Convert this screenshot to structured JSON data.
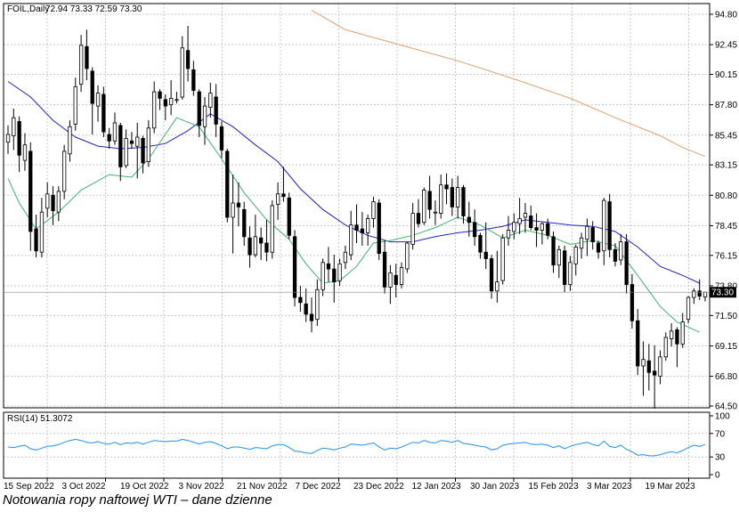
{
  "chart_data": {
    "type": "candlestick",
    "symbol_header": "FOIL,Daily",
    "ohlc_header": "72.94 73.33 72.59 73.30",
    "last_price_label": "73.30",
    "price_axis": {
      "ticks": [
        "94.80",
        "92.45",
        "90.15",
        "87.80",
        "85.45",
        "83.15",
        "80.80",
        "78.45",
        "76.15",
        "73.80",
        "71.50",
        "69.15",
        "66.80",
        "64.50"
      ],
      "range": [
        64.5,
        94.8
      ]
    },
    "rsi_panel": {
      "label": "RSI(14) 51.3072",
      "ticks": [
        "100",
        "70",
        "30",
        "0"
      ],
      "range": [
        0,
        100
      ],
      "levels": [
        70,
        30
      ]
    },
    "x_labels": [
      "15 Sep 2022",
      "3 Oct 2022",
      "19 Oct 2022",
      "3 Nov 2022",
      "21 Nov 2022",
      "7 Dec 2022",
      "23 Dec 2022",
      "12 Jan 2023",
      "30 Jan 2023",
      "15 Feb 2023",
      "3 Mar 2023",
      "19 Mar 2023"
    ],
    "colors": {
      "bull_candle": "#ffffff",
      "bear_candle": "#000000",
      "ma_fast": "#3cb371",
      "ma_mid": "#2020d0",
      "ma_slow": "#e0a070",
      "rsi": "#1e90ff",
      "grid": "#c8c8c8"
    },
    "candles": [
      [
        84.9,
        86.2,
        84.0,
        85.5
      ],
      [
        85.4,
        87.5,
        84.3,
        86.8
      ],
      [
        86.5,
        86.9,
        82.6,
        83.9
      ],
      [
        83.5,
        85.6,
        82.7,
        84.7
      ],
      [
        84.2,
        84.9,
        76.5,
        78.0
      ],
      [
        78.2,
        79.3,
        76.0,
        76.5
      ],
      [
        76.4,
        80.6,
        76.0,
        79.5
      ],
      [
        79.8,
        81.8,
        79.1,
        80.9
      ],
      [
        80.8,
        81.5,
        78.5,
        79.6
      ],
      [
        79.5,
        81.5,
        78.8,
        81.1
      ],
      [
        81.1,
        84.7,
        80.5,
        84.2
      ],
      [
        84.0,
        86.6,
        83.4,
        86.1
      ],
      [
        86.3,
        89.9,
        85.8,
        89.2
      ],
      [
        89.4,
        93.2,
        88.8,
        92.4
      ],
      [
        92.3,
        93.6,
        89.7,
        90.6
      ],
      [
        90.4,
        90.7,
        85.5,
        87.9
      ],
      [
        87.7,
        89.3,
        86.5,
        88.7
      ],
      [
        88.6,
        89.2,
        85.3,
        85.7
      ],
      [
        85.5,
        86.0,
        84.4,
        85.0
      ],
      [
        85.0,
        87.2,
        84.7,
        86.4
      ],
      [
        86.2,
        86.4,
        81.9,
        83.0
      ],
      [
        83.1,
        85.9,
        82.9,
        85.2
      ],
      [
        85.0,
        85.7,
        84.4,
        84.8
      ],
      [
        84.6,
        86.4,
        82.1,
        85.3
      ],
      [
        85.2,
        85.4,
        82.5,
        83.3
      ],
      [
        83.4,
        86.6,
        83.0,
        86.0
      ],
      [
        86.0,
        89.6,
        85.6,
        88.8
      ],
      [
        88.8,
        89.0,
        87.4,
        88.3
      ],
      [
        88.2,
        88.6,
        86.6,
        87.7
      ],
      [
        87.8,
        89.7,
        87.0,
        88.3
      ],
      [
        88.2,
        88.8,
        87.9,
        88.2
      ],
      [
        88.4,
        93.1,
        88.2,
        92.2
      ],
      [
        92.0,
        93.9,
        89.6,
        90.6
      ],
      [
        90.5,
        91.2,
        88.5,
        88.9
      ],
      [
        88.8,
        89.0,
        85.3,
        86.2
      ],
      [
        86.1,
        88.4,
        84.7,
        87.7
      ],
      [
        87.6,
        89.5,
        86.8,
        88.7
      ],
      [
        88.4,
        89.4,
        85.3,
        86.3
      ],
      [
        86.1,
        86.5,
        83.7,
        84.3
      ],
      [
        84.2,
        84.4,
        78.7,
        79.1
      ],
      [
        79.1,
        82.4,
        76.3,
        80.2
      ],
      [
        80.2,
        81.8,
        78.4,
        79.9
      ],
      [
        79.7,
        80.3,
        76.9,
        77.6
      ],
      [
        77.5,
        78.4,
        75.2,
        76.2
      ],
      [
        76.2,
        79.3,
        76.0,
        77.6
      ],
      [
        77.5,
        78.3,
        75.8,
        77.1
      ],
      [
        77.1,
        78.9,
        75.7,
        76.4
      ],
      [
        76.4,
        80.4,
        75.9,
        80.0
      ],
      [
        80.1,
        81.8,
        78.9,
        80.9
      ],
      [
        80.9,
        83.0,
        80.3,
        80.7
      ],
      [
        80.6,
        81.0,
        77.4,
        77.7
      ],
      [
        77.6,
        78.1,
        72.2,
        72.9
      ],
      [
        72.9,
        73.8,
        71.8,
        72.5
      ],
      [
        72.4,
        73.6,
        71.0,
        71.6
      ],
      [
        71.6,
        72.9,
        70.2,
        71.1
      ],
      [
        71.2,
        74.3,
        70.7,
        73.5
      ],
      [
        73.5,
        75.9,
        73.0,
        75.6
      ],
      [
        75.5,
        76.8,
        74.1,
        75.1
      ],
      [
        75.1,
        76.2,
        72.5,
        74.1
      ],
      [
        74.2,
        75.9,
        73.8,
        75.5
      ],
      [
        75.6,
        76.9,
        75.1,
        76.4
      ],
      [
        76.2,
        79.6,
        75.8,
        78.5
      ],
      [
        78.5,
        80.1,
        77.1,
        78.1
      ],
      [
        78.2,
        79.5,
        76.9,
        77.9
      ],
      [
        77.9,
        79.3,
        76.9,
        79.0
      ],
      [
        79.0,
        80.7,
        78.3,
        80.3
      ],
      [
        80.2,
        80.5,
        75.8,
        76.3
      ],
      [
        76.4,
        77.3,
        73.2,
        73.7
      ],
      [
        73.7,
        75.4,
        72.4,
        74.8
      ],
      [
        74.6,
        75.5,
        72.9,
        73.9
      ],
      [
        73.9,
        75.6,
        73.6,
        75.2
      ],
      [
        75.1,
        77.2,
        74.8,
        77.1
      ],
      [
        77.0,
        80.2,
        76.6,
        79.4
      ],
      [
        79.4,
        80.5,
        78.3,
        78.6
      ],
      [
        78.7,
        81.4,
        78.5,
        81.2
      ],
      [
        81.1,
        82.3,
        79.0,
        79.7
      ],
      [
        79.5,
        80.4,
        78.5,
        79.5
      ],
      [
        79.4,
        82.4,
        79.0,
        81.6
      ],
      [
        81.6,
        82.5,
        80.1,
        81.3
      ],
      [
        81.4,
        82.1,
        79.2,
        79.9
      ],
      [
        79.9,
        82.3,
        79.0,
        81.4
      ],
      [
        81.4,
        81.6,
        78.6,
        79.2
      ],
      [
        79.1,
        80.3,
        77.6,
        78.7
      ],
      [
        78.7,
        79.7,
        76.9,
        77.6
      ],
      [
        77.7,
        77.9,
        75.9,
        76.4
      ],
      [
        76.4,
        78.7,
        75.1,
        75.9
      ],
      [
        75.9,
        76.2,
        72.8,
        73.4
      ],
      [
        73.4,
        76.5,
        72.5,
        74.1
      ],
      [
        74.2,
        77.8,
        73.9,
        77.5
      ],
      [
        77.5,
        79.2,
        76.9,
        78.1
      ],
      [
        78.0,
        79.4,
        77.4,
        78.7
      ],
      [
        78.6,
        80.6,
        77.8,
        79.0
      ],
      [
        79.1,
        80.2,
        77.9,
        79.4
      ],
      [
        79.2,
        80.0,
        78.1,
        78.3
      ],
      [
        78.3,
        79.4,
        76.8,
        78.1
      ],
      [
        78.1,
        78.7,
        77.0,
        78.6
      ],
      [
        78.6,
        79.0,
        77.4,
        77.7
      ],
      [
        77.6,
        78.0,
        74.8,
        75.4
      ],
      [
        75.4,
        76.9,
        74.4,
        76.6
      ],
      [
        76.5,
        76.9,
        73.3,
        73.9
      ],
      [
        73.9,
        76.1,
        73.4,
        75.6
      ],
      [
        75.5,
        77.0,
        74.6,
        76.8
      ],
      [
        76.7,
        77.9,
        75.9,
        77.5
      ],
      [
        77.4,
        79.0,
        76.1,
        78.4
      ],
      [
        78.3,
        78.8,
        76.6,
        77.2
      ],
      [
        77.1,
        77.3,
        75.9,
        76.4
      ],
      [
        76.5,
        80.6,
        75.4,
        80.4
      ],
      [
        80.3,
        80.9,
        76.0,
        76.6
      ],
      [
        76.6,
        77.1,
        75.3,
        75.7
      ],
      [
        75.8,
        77.8,
        75.4,
        77.2
      ],
      [
        77.2,
        77.8,
        73.2,
        73.9
      ],
      [
        73.9,
        74.7,
        70.5,
        71.1
      ],
      [
        71.1,
        72.0,
        66.9,
        67.6
      ],
      [
        67.6,
        69.5,
        65.3,
        68.1
      ],
      [
        68.0,
        69.3,
        65.7,
        67.1
      ],
      [
        67.2,
        69.2,
        64.3,
        66.9
      ],
      [
        66.8,
        68.8,
        66.2,
        68.3
      ],
      [
        68.3,
        70.2,
        68.0,
        69.8
      ],
      [
        69.7,
        70.9,
        69.1,
        70.3
      ],
      [
        70.4,
        70.6,
        67.5,
        69.3
      ],
      [
        69.3,
        71.7,
        69.0,
        71.0
      ],
      [
        71.2,
        73.0,
        70.9,
        72.9
      ],
      [
        72.9,
        73.6,
        72.4,
        73.4
      ],
      [
        73.4,
        74.3,
        72.7,
        73.0
      ],
      [
        72.94,
        73.33,
        72.59,
        73.3
      ]
    ],
    "ma_fast": [
      [
        0,
        82.1
      ],
      [
        2,
        80.2
      ],
      [
        5,
        78.2
      ],
      [
        9,
        79.5
      ],
      [
        13,
        81.2
      ],
      [
        18,
        82.4
      ],
      [
        22,
        82.2
      ],
      [
        25,
        83.6
      ],
      [
        30,
        86.8
      ],
      [
        34,
        86.1
      ],
      [
        38,
        83.6
      ],
      [
        42,
        81.0
      ],
      [
        46,
        78.9
      ],
      [
        50,
        77.4
      ],
      [
        53,
        75.5
      ],
      [
        56,
        74.0
      ],
      [
        59,
        74.2
      ],
      [
        62,
        75.3
      ],
      [
        65,
        77.1
      ],
      [
        68,
        77.3
      ],
      [
        72,
        77.7
      ],
      [
        76,
        78.3
      ],
      [
        80,
        79.1
      ],
      [
        84,
        78.5
      ],
      [
        88,
        77.5
      ],
      [
        92,
        78.1
      ],
      [
        96,
        77.7
      ],
      [
        100,
        77.0
      ],
      [
        104,
        77.3
      ],
      [
        108,
        76.9
      ],
      [
        112,
        74.6
      ],
      [
        116,
        72.2
      ],
      [
        119,
        71.0
      ],
      [
        123,
        70.2
      ]
    ],
    "ma_mid": [
      [
        0,
        89.6
      ],
      [
        4,
        88.4
      ],
      [
        8,
        86.6
      ],
      [
        12,
        85.3
      ],
      [
        16,
        84.6
      ],
      [
        20,
        84.4
      ],
      [
        24,
        84.5
      ],
      [
        28,
        84.8
      ],
      [
        32,
        85.8
      ],
      [
        36,
        87.1
      ],
      [
        40,
        86.1
      ],
      [
        44,
        84.7
      ],
      [
        48,
        83.4
      ],
      [
        52,
        81.3
      ],
      [
        56,
        79.7
      ],
      [
        60,
        78.5
      ],
      [
        64,
        77.7
      ],
      [
        68,
        77.2
      ],
      [
        72,
        77.2
      ],
      [
        76,
        77.6
      ],
      [
        80,
        77.9
      ],
      [
        84,
        78.1
      ],
      [
        88,
        78.4
      ],
      [
        92,
        78.9
      ],
      [
        96,
        78.7
      ],
      [
        100,
        78.5
      ],
      [
        104,
        78.4
      ],
      [
        108,
        78.0
      ],
      [
        112,
        76.8
      ],
      [
        116,
        75.3
      ],
      [
        120,
        74.6
      ],
      [
        123,
        74.0
      ]
    ],
    "ma_slow": [
      [
        54,
        95.1
      ],
      [
        60,
        93.6
      ],
      [
        70,
        92.4
      ],
      [
        80,
        91.2
      ],
      [
        90,
        89.8
      ],
      [
        100,
        88.3
      ],
      [
        108,
        86.8
      ],
      [
        116,
        85.4
      ],
      [
        120,
        84.5
      ],
      [
        124,
        83.8
      ]
    ],
    "rsi_values": [
      47,
      46,
      48,
      50,
      44,
      42,
      45,
      48,
      49,
      51,
      55,
      58,
      60,
      58,
      55,
      54,
      56,
      53,
      52,
      55,
      51,
      54,
      53,
      55,
      52,
      55,
      58,
      57,
      56,
      57,
      57,
      60,
      58,
      55,
      52,
      55,
      56,
      53,
      49,
      44,
      47,
      47,
      45,
      43,
      46,
      45,
      44,
      49,
      51,
      51,
      46,
      40,
      39,
      37,
      36,
      41,
      45,
      44,
      42,
      45,
      47,
      52,
      51,
      50,
      52,
      54,
      47,
      42,
      45,
      44,
      47,
      51,
      55,
      54,
      58,
      55,
      54,
      58,
      57,
      55,
      58,
      53,
      52,
      50,
      48,
      47,
      42,
      44,
      50,
      52,
      53,
      54,
      55,
      52,
      51,
      52,
      50,
      46,
      49,
      44,
      48,
      51,
      53,
      55,
      51,
      49,
      57,
      48,
      46,
      50,
      43,
      39,
      33,
      34,
      32,
      32,
      34,
      37,
      39,
      37,
      41,
      46,
      50,
      48,
      51
    ]
  },
  "caption": "Notowania ropy naftowej WTI – dane dzienne"
}
